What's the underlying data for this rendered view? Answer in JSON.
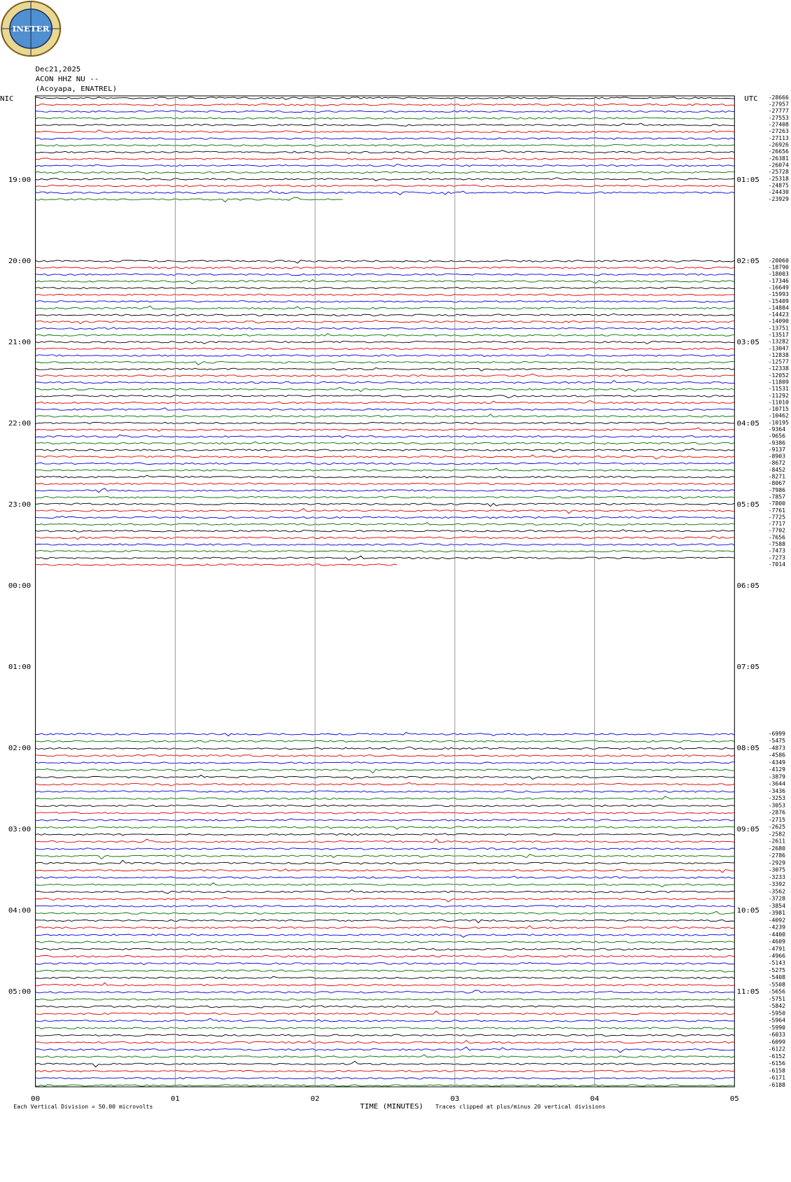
{
  "header": {
    "logo": "INETER",
    "date": "Dec21,2025",
    "station": "ACON HHZ NU --",
    "site": "(Acoyapa, ENATREL)",
    "left_zone": "NIC",
    "right_zone": "UTC"
  },
  "left_times": [
    "19:00",
    "20:00",
    "21:00",
    "22:00",
    "23:00",
    "00:00",
    "01:00",
    "02:00",
    "03:00",
    "04:00",
    "05:00"
  ],
  "right_times": [
    "01:05",
    "02:05",
    "03:05",
    "04:05",
    "05:05",
    "06:05",
    "07:05",
    "08:05",
    "09:05",
    "10:05",
    "11:05"
  ],
  "x_ticks": [
    "00",
    "01",
    "02",
    "03",
    "04",
    "05"
  ],
  "x_label": "TIME (MINUTES)",
  "scale_note": "Each Vertical Division =   50.00 microvolts",
  "clip_note": "Traces clipped at plus/minus 20 vertical divisions",
  "colors": [
    "#000000",
    "#e00000",
    "#0000e0",
    "#007000"
  ],
  "offsets": [
    [
      -28666,
      -27957,
      -27777,
      -27553,
      -27408,
      -27263,
      -27113,
      -26926,
      -26656,
      -26381,
      -26074,
      -25728,
      -25318,
      -24875,
      -24430,
      -23929
    ],
    [
      -20060,
      -18790,
      -18003,
      -17346,
      -16649,
      -15993,
      -15409,
      -14884,
      -14423,
      -14090,
      -13751,
      -13517,
      -13282,
      -13047,
      -12838,
      -12577,
      -12338,
      -12052,
      -11809,
      -11531,
      -11292,
      -11010,
      -10715,
      -10462,
      -10195,
      -9364,
      -9656,
      -9386,
      -9137,
      -8903,
      -8672,
      -8452,
      -8271,
      -8067,
      -7986,
      -7857,
      -7800,
      -7761,
      -7725,
      -7717,
      -7702,
      -7656,
      -7588,
      -7473,
      -7273,
      -7014
    ],
    [
      -6999,
      -5475,
      -4873,
      -4586,
      -4349,
      -4129,
      -3879,
      -3644,
      -3436,
      -3253,
      -3053,
      -2876,
      -2715,
      -2625,
      -2582,
      -2611,
      -2680,
      -2786,
      -2929,
      -3075,
      -3233,
      -3392,
      -3562,
      -3728,
      -3854,
      -3981,
      -4092,
      -4239,
      -4400,
      -4609,
      -4791,
      -4966,
      -5143,
      -5275,
      -5408,
      -5508,
      -5656,
      -5751,
      -5842,
      -5950,
      -5964,
      -5990,
      -6033,
      -6099,
      -6122,
      -6152,
      -6156,
      -6158,
      -6171,
      -6188
    ]
  ]
}
